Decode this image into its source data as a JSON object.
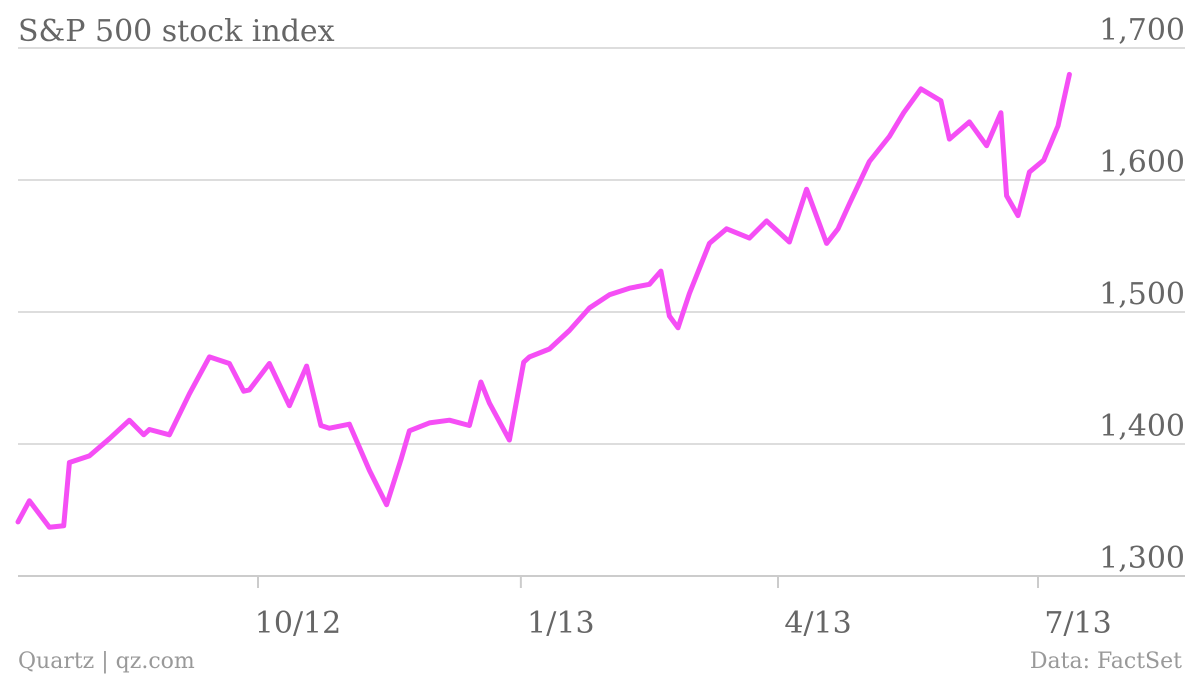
{
  "chart_data": {
    "type": "line",
    "title": "S&P 500 stock index",
    "xlabel": "",
    "ylabel": "",
    "ylim": [
      1300,
      1700
    ],
    "yticks": [
      "1,300",
      "1,400",
      "1,500",
      "1,600",
      "1,700"
    ],
    "ytick_values": [
      1300,
      1400,
      1500,
      1600,
      1700
    ],
    "xticks": [
      "10/12",
      "1/13",
      "4/13",
      "7/13"
    ],
    "xtick_dates": [
      "2012-10-01",
      "2013-01-01",
      "2013-04-01",
      "2013-07-01"
    ],
    "x_range": [
      "2012-07-09",
      "2013-07-15"
    ],
    "grid": true,
    "legend": "none",
    "series": [
      {
        "color": "#F54EF5",
        "x": [
          "2012-07-09",
          "2012-07-13",
          "2012-07-20",
          "2012-07-25",
          "2012-07-27",
          "2012-08-03",
          "2012-08-10",
          "2012-08-17",
          "2012-08-22",
          "2012-08-24",
          "2012-08-31",
          "2012-09-07",
          "2012-09-14",
          "2012-09-21",
          "2012-09-26",
          "2012-09-28",
          "2012-10-05",
          "2012-10-12",
          "2012-10-18",
          "2012-10-23",
          "2012-10-26",
          "2012-11-02",
          "2012-11-09",
          "2012-11-15",
          "2012-11-20",
          "2012-11-23",
          "2012-11-30",
          "2012-12-07",
          "2012-12-14",
          "2012-12-18",
          "2012-12-21",
          "2012-12-28",
          "2013-01-02",
          "2013-01-04",
          "2013-01-11",
          "2013-01-18",
          "2013-01-25",
          "2013-02-01",
          "2013-02-08",
          "2013-02-15",
          "2013-02-19",
          "2013-02-22",
          "2013-02-25",
          "2013-03-01",
          "2013-03-08",
          "2013-03-14",
          "2013-03-22",
          "2013-03-28",
          "2013-04-05",
          "2013-04-11",
          "2013-04-18",
          "2013-04-22",
          "2013-04-26",
          "2013-05-03",
          "2013-05-10",
          "2013-05-15",
          "2013-05-21",
          "2013-05-28",
          "2013-05-31",
          "2013-06-07",
          "2013-06-13",
          "2013-06-18",
          "2013-06-20",
          "2013-06-24",
          "2013-06-28",
          "2013-07-03",
          "2013-07-08",
          "2013-07-12"
        ],
        "values": [
          1341,
          1357,
          1337,
          1338,
          1386,
          1391,
          1404,
          1418,
          1407,
          1411,
          1407,
          1438,
          1466,
          1461,
          1440,
          1441,
          1461,
          1429,
          1459,
          1414,
          1412,
          1415,
          1380,
          1354,
          1388,
          1410,
          1416,
          1418,
          1414,
          1447,
          1431,
          1403,
          1462,
          1466,
          1472,
          1486,
          1503,
          1513,
          1518,
          1521,
          1531,
          1497,
          1488,
          1514,
          1552,
          1563,
          1556,
          1569,
          1553,
          1593,
          1552,
          1563,
          1582,
          1614,
          1633,
          1651,
          1669,
          1660,
          1631,
          1644,
          1626,
          1651,
          1588,
          1573,
          1606,
          1615,
          1641,
          1680
        ]
      }
    ]
  },
  "footer": {
    "source_left": "Quartz | qz.com",
    "source_right": "Data: FactSet"
  }
}
